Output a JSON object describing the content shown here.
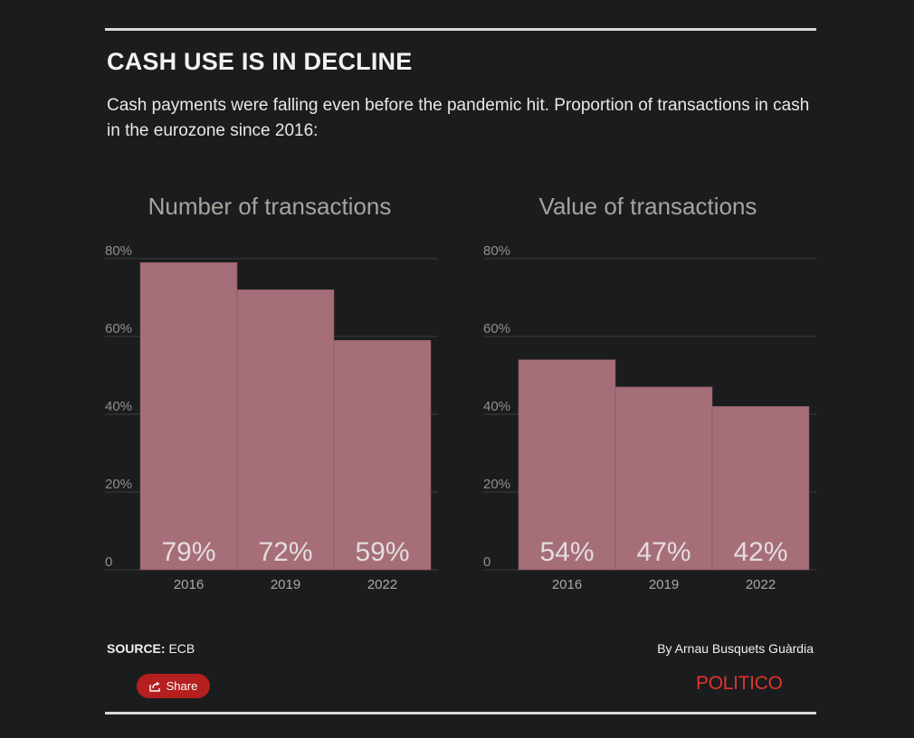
{
  "header": {
    "title": "CASH USE IS IN DECLINE",
    "subtitle": "Cash payments were falling even before the pandemic hit. Proportion of transactions in cash in the eurozone since 2016:"
  },
  "chart_data": [
    {
      "type": "bar",
      "title": "Number of transactions",
      "categories": [
        "2016",
        "2019",
        "2022"
      ],
      "values": [
        79,
        72,
        59
      ],
      "value_labels": [
        "79%",
        "72%",
        "59%"
      ],
      "yticks": [
        0,
        20,
        40,
        60,
        80
      ],
      "ytick_labels": [
        "0",
        "20%",
        "40%",
        "60%",
        "80%"
      ],
      "ylim": [
        0,
        80
      ],
      "grid": true,
      "bar_color": "#a66e78"
    },
    {
      "type": "bar",
      "title": "Value of transactions",
      "categories": [
        "2016",
        "2019",
        "2022"
      ],
      "values": [
        54,
        47,
        42
      ],
      "value_labels": [
        "54%",
        "47%",
        "42%"
      ],
      "yticks": [
        0,
        20,
        40,
        60,
        80
      ],
      "ytick_labels": [
        "0",
        "20%",
        "40%",
        "60%",
        "80%"
      ],
      "ylim": [
        0,
        80
      ],
      "grid": true,
      "bar_color": "#a66e78"
    }
  ],
  "footer": {
    "source_label": "SOURCE:",
    "source_value": "ECB",
    "byline": "By Arnau Busquets Guàrdia",
    "share_label": "Share",
    "logo": "POLITICO"
  },
  "colors": {
    "background": "#1b1c1e",
    "bar": "#a66e78",
    "share_button": "#b51f1f",
    "logo": "#e0342b"
  }
}
